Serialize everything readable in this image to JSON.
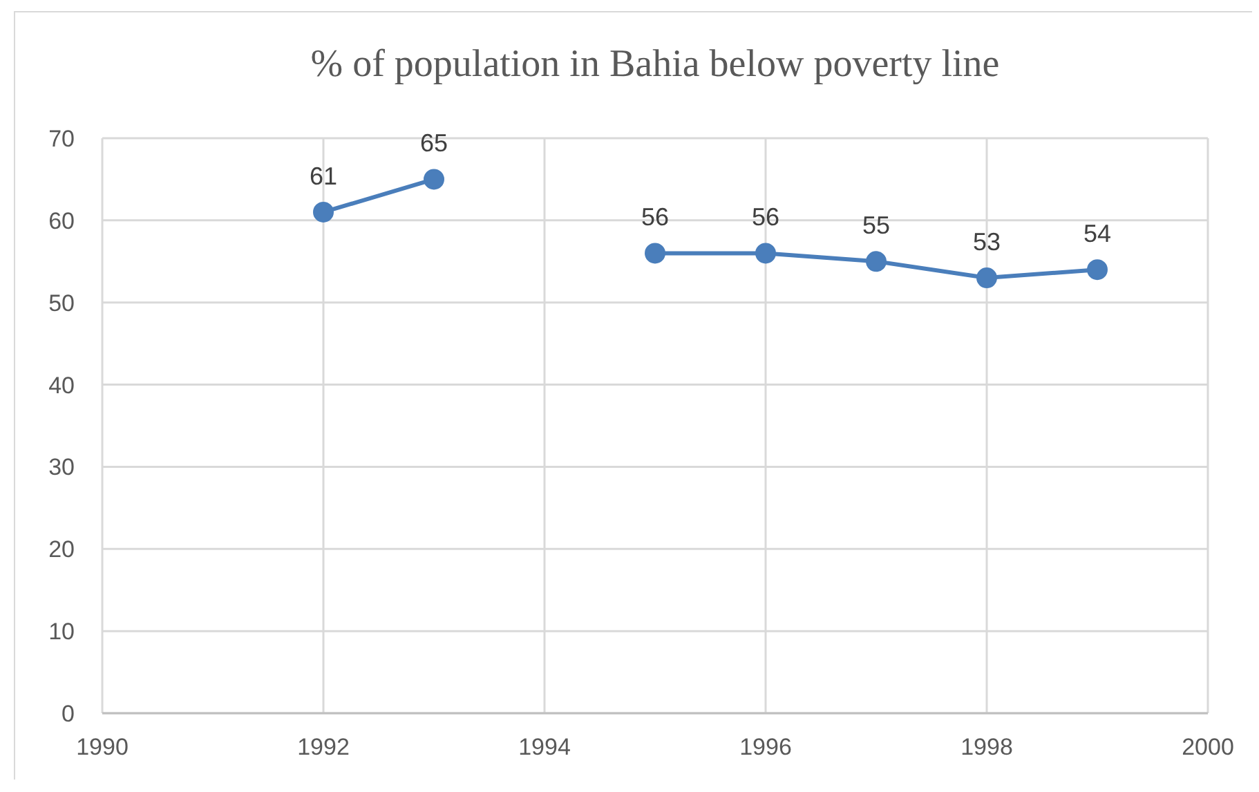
{
  "chart_data": {
    "type": "line",
    "title": "% of population in Bahia below poverty line",
    "x": [
      1992,
      1993,
      1994,
      1995,
      1996,
      1997,
      1998,
      1999
    ],
    "series": [
      {
        "color": "#4a7ebb",
        "values": [
          61,
          65,
          null,
          56,
          56,
          55,
          53,
          54
        ]
      }
    ],
    "xlim": [
      1990,
      2000
    ],
    "xticks": [
      1990,
      1992,
      1994,
      1996,
      1998,
      2000
    ],
    "ylim": [
      0,
      70
    ],
    "yticks": [
      0,
      10,
      20,
      30,
      40,
      50,
      60,
      70
    ],
    "grid": true,
    "marker": "circle",
    "data_labels": true
  }
}
